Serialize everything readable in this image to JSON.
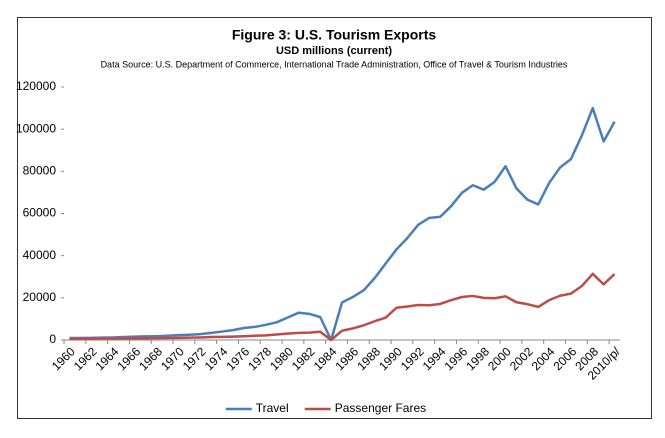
{
  "chart_data": {
    "type": "line",
    "title": "Figure 3: U.S. Tourism Exports",
    "subtitle": "USD millions (current)",
    "source": "Data Source: U.S. Department of Commerce, International Trade Administration, Office of Travel & Tourism Industries",
    "categories": [
      "1960",
      null,
      "1962",
      null,
      "1964",
      null,
      "1966",
      null,
      "1968",
      null,
      "1970",
      null,
      "1972",
      null,
      "1974",
      null,
      "1976",
      null,
      "1978",
      null,
      "1980",
      null,
      "1982",
      null,
      "1984",
      null,
      "1986",
      null,
      "1988",
      null,
      "1990",
      null,
      "1992",
      null,
      "1994",
      null,
      "1996",
      null,
      "1998",
      null,
      "2000",
      null,
      "2002",
      null,
      "2004",
      null,
      "2006",
      null,
      "2008",
      null,
      "2010/p/"
    ],
    "series": [
      {
        "name": "Travel",
        "color": "#4a7ebb",
        "values": [
          919,
          950,
          1000,
          1100,
          1200,
          1400,
          1600,
          1700,
          1800,
          2000,
          2300,
          2500,
          2800,
          3400,
          4000,
          4700,
          5700,
          6200,
          7200,
          8400,
          10600,
          12900,
          12400,
          10900,
          0,
          17800,
          20400,
          23600,
          29400,
          36200,
          43000,
          48400,
          54700,
          57900,
          58400,
          63400,
          69800,
          73400,
          71300,
          75000,
          82400,
          71900,
          66600,
          64300,
          74500,
          81800,
          85800,
          97000,
          110000,
          94200,
          103500
        ]
      },
      {
        "name": "Passenger Fares",
        "color": "#be4b48",
        "values": [
          500,
          550,
          600,
          650,
          700,
          750,
          800,
          850,
          900,
          950,
          1000,
          1100,
          1200,
          1400,
          1500,
          1600,
          1800,
          2000,
          2200,
          2600,
          3000,
          3400,
          3500,
          3900,
          0,
          4400,
          5500,
          7000,
          8900,
          10600,
          15300,
          15900,
          16600,
          16500,
          17100,
          18900,
          20400,
          20900,
          20000,
          19800,
          20700,
          17900,
          17000,
          15700,
          18900,
          21000,
          22000,
          25600,
          31400,
          26400,
          31300
        ]
      }
    ],
    "ylim": [
      0,
      120000
    ],
    "yticks": [
      0,
      20000,
      40000,
      60000,
      80000,
      100000,
      120000
    ],
    "grid": false,
    "legend": "bottom"
  }
}
